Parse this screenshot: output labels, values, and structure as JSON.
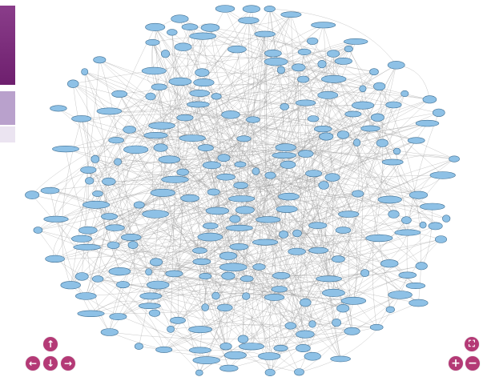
{
  "sidebar": {
    "tabs": [
      {
        "name": "tab-1",
        "color": "#7a2b7a"
      },
      {
        "name": "tab-2",
        "color": "#b9a1cc"
      },
      {
        "name": "tab-3",
        "color": "#ebe4f1"
      }
    ]
  },
  "graph": {
    "node_color": "#8ec1e6",
    "node_stroke": "#3f6f93",
    "edge_color": "#9a9a9a"
  },
  "controls": {
    "pan_up": {
      "icon": "arrow-up-icon",
      "glyph": "↑"
    },
    "pan_left": {
      "icon": "arrow-left-icon",
      "glyph": "←"
    },
    "pan_down": {
      "icon": "arrow-down-icon",
      "glyph": "↓"
    },
    "pan_right": {
      "icon": "arrow-right-icon",
      "glyph": "→"
    },
    "fit": {
      "icon": "fit-to-screen-icon",
      "glyph": "⛶"
    },
    "zoom_in": {
      "icon": "plus-icon",
      "glyph": "+"
    },
    "zoom_out": {
      "icon": "minus-icon",
      "glyph": "−"
    },
    "accent_color": "#b43a76"
  }
}
